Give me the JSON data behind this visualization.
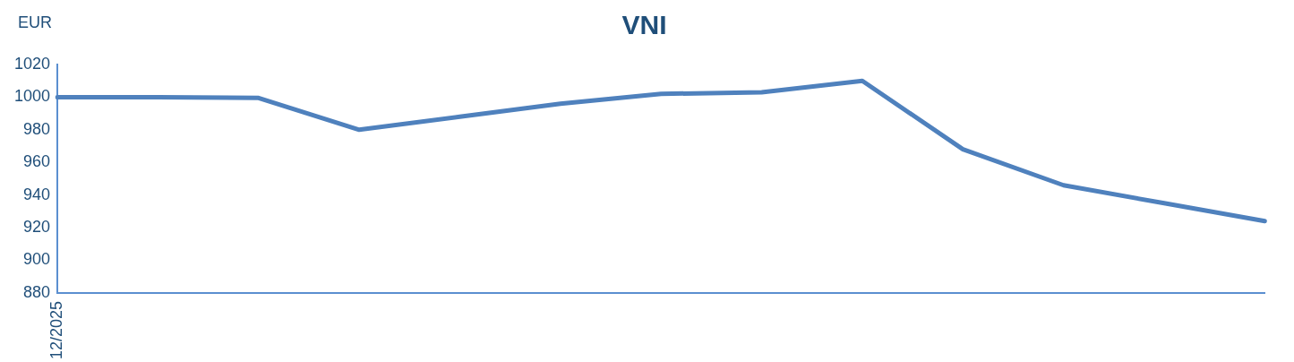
{
  "chart_data": {
    "type": "line",
    "title": "VNI",
    "ylabel": "EUR",
    "categories": [
      "12/2025",
      null,
      null,
      null,
      null,
      null,
      null,
      null,
      null,
      null,
      null,
      null,
      null
    ],
    "series": [
      {
        "color": "#4f81bd",
        "values": [
          1000,
          1000,
          999.5,
          980,
          988,
          996,
          1002,
          1003,
          1010,
          968,
          946,
          935,
          924
        ]
      }
    ],
    "ylim": [
      880,
      1020
    ],
    "yticks": [
      880,
      900,
      920,
      940,
      960,
      980,
      1000,
      1020
    ],
    "grid": false,
    "legend": false,
    "marker": "none",
    "line_style": "solid"
  }
}
